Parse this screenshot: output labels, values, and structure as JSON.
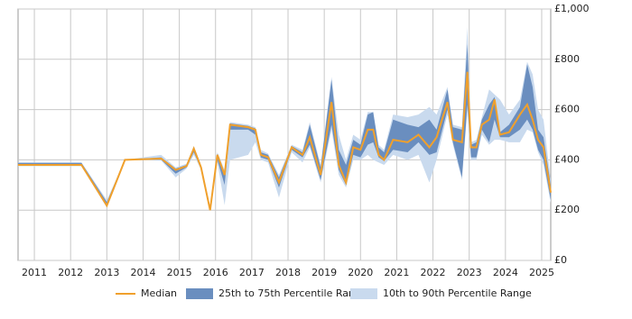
{
  "chart_data": {
    "type": "line",
    "x": [
      2010.55,
      2012.3,
      2013.0,
      2013.5,
      2014.5,
      2014.9,
      2015.2,
      2015.4,
      2015.6,
      2015.85,
      2016.05,
      2016.25,
      2016.4,
      2016.9,
      2017.1,
      2017.25,
      2017.45,
      2017.75,
      2018.1,
      2018.4,
      2018.6,
      2018.9,
      2019.2,
      2019.4,
      2019.6,
      2019.8,
      2020.0,
      2020.2,
      2020.35,
      2020.5,
      2020.65,
      2020.9,
      2021.3,
      2021.6,
      2021.9,
      2022.1,
      2022.4,
      2022.55,
      2022.8,
      2022.95,
      2023.05,
      2023.2,
      2023.35,
      2023.55,
      2023.7,
      2023.85,
      2024.1,
      2024.4,
      2024.6,
      2024.75,
      2024.9,
      2025.05,
      2025.25
    ],
    "series": [
      {
        "name": "Median",
        "color": "#f0a02c",
        "values": [
          380,
          380,
          218,
          400,
          405,
          360,
          375,
          445,
          370,
          200,
          420,
          340,
          540,
          530,
          520,
          420,
          410,
          310,
          450,
          420,
          490,
          340,
          630,
          380,
          310,
          450,
          440,
          520,
          520,
          420,
          400,
          480,
          470,
          500,
          450,
          490,
          630,
          480,
          470,
          750,
          450,
          450,
          540,
          560,
          640,
          500,
          510,
          580,
          620,
          560,
          480,
          450,
          270
        ]
      },
      {
        "name": "25th to 75th Percentile Range",
        "color": "#6a8ebf",
        "low": [
          378,
          378,
          212,
          400,
          400,
          345,
          370,
          430,
          365,
          200,
          400,
          300,
          520,
          520,
          500,
          410,
          400,
          290,
          440,
          410,
          460,
          320,
          540,
          360,
          300,
          420,
          410,
          460,
          470,
          410,
          395,
          440,
          430,
          470,
          420,
          430,
          600,
          470,
          330,
          620,
          410,
          410,
          520,
          470,
          560,
          490,
          490,
          520,
          560,
          520,
          440,
          400,
          240
        ],
        "high": [
          388,
          388,
          232,
          400,
          410,
          365,
          380,
          450,
          375,
          200,
          425,
          350,
          545,
          535,
          525,
          430,
          420,
          330,
          455,
          430,
          540,
          370,
          720,
          440,
          380,
          480,
          460,
          580,
          590,
          450,
          430,
          560,
          540,
          530,
          560,
          520,
          680,
          530,
          520,
          860,
          460,
          470,
          560,
          620,
          650,
          510,
          540,
          610,
          780,
          690,
          520,
          490,
          300
        ]
      },
      {
        "name": "10th to 90th Percentile Range",
        "color": "#c9daee",
        "low": [
          375,
          375,
          210,
          400,
          398,
          330,
          365,
          420,
          360,
          200,
          390,
          220,
          400,
          420,
          470,
          400,
          390,
          250,
          430,
          390,
          450,
          310,
          520,
          340,
          290,
          400,
          400,
          420,
          400,
          390,
          380,
          420,
          400,
          420,
          310,
          400,
          580,
          460,
          320,
          600,
          400,
          400,
          500,
          460,
          480,
          480,
          470,
          470,
          520,
          510,
          430,
          380,
          230
        ],
        "high": [
          390,
          390,
          240,
          400,
          420,
          370,
          385,
          455,
          380,
          200,
          430,
          360,
          550,
          540,
          530,
          440,
          425,
          340,
          460,
          440,
          550,
          380,
          730,
          500,
          400,
          500,
          480,
          590,
          590,
          460,
          440,
          580,
          570,
          580,
          610,
          580,
          690,
          540,
          530,
          930,
          470,
          480,
          570,
          680,
          660,
          640,
          580,
          640,
          790,
          740,
          600,
          560,
          320
        ]
      }
    ],
    "xlim": [
      2010.55,
      2025.25
    ],
    "xticks": [
      2011,
      2012,
      2013,
      2014,
      2015,
      2016,
      2017,
      2018,
      2019,
      2020,
      2021,
      2022,
      2023,
      2024,
      2025
    ],
    "ylim": [
      0,
      1000
    ],
    "yticks": [
      {
        "value": 0,
        "label": "£0"
      },
      {
        "value": 200,
        "label": "£200"
      },
      {
        "value": 400,
        "label": "£400"
      },
      {
        "value": 600,
        "label": "£600"
      },
      {
        "value": 800,
        "label": "£800"
      },
      {
        "value": 1000,
        "label": "£1,000"
      }
    ],
    "grid": true
  }
}
